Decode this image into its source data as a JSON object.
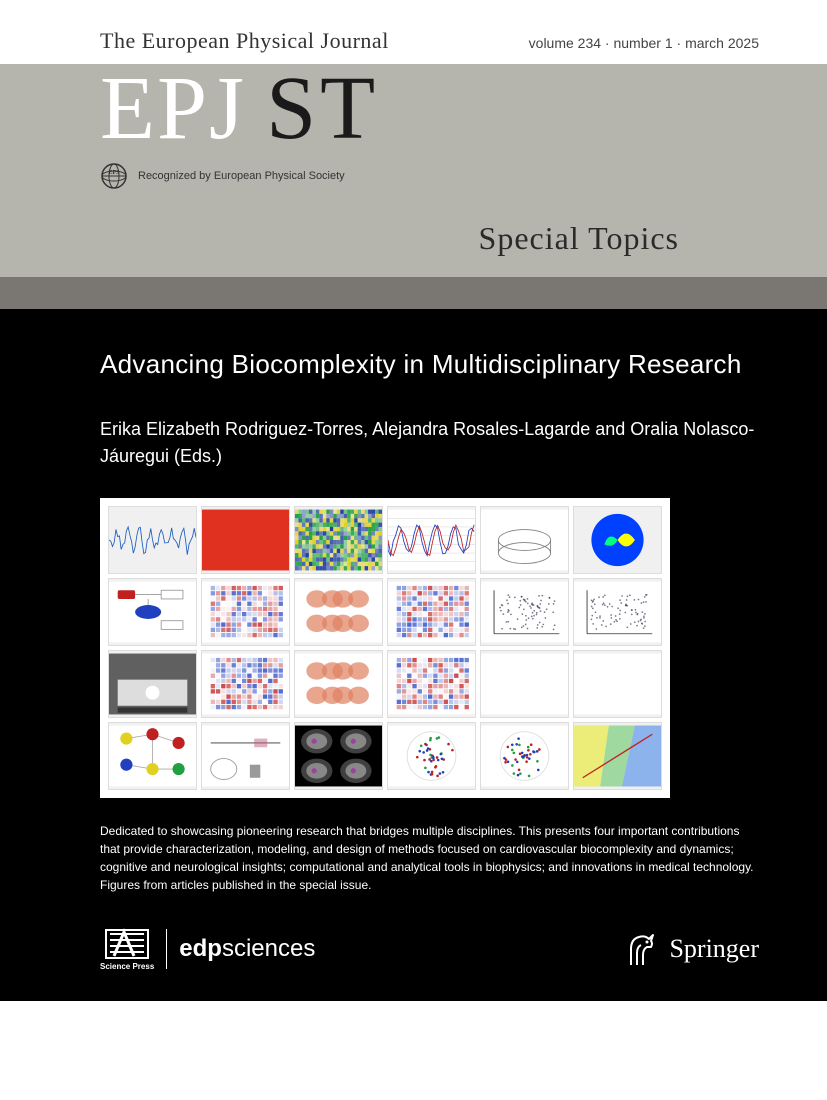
{
  "header": {
    "journal_name": "The European Physical Journal",
    "issue_info": "volume 234 · number 1 · march 2025"
  },
  "masthead": {
    "logo_primary": "EPJ",
    "logo_secondary": "ST",
    "recognized_text": "Recognized by European Physical Society",
    "subtitle": "Special Topics"
  },
  "article": {
    "title": "Advancing Biocomplexity in Multidisciplinary Research",
    "editors": "Erika Elizabeth Rodriguez-Torres, Alejandra Rosales-Lagarde and Oralia Nolasco-Jáuregui (Eds.)",
    "description": "Dedicated to showcasing pioneering research that bridges multiple disciplines. This presents four important contributions that provide characterization, modeling, and design of methods focused on cardiovascular biocomplexity and dynamics; cognitive and neurological insights; computational and analytical tools in biophysics; and innovations in medical technology.\nFigures from articles published in the special issue."
  },
  "publishers": {
    "science_press": "Science Press",
    "edp_bold": "edp",
    "edp_light": "sciences",
    "springer": "Springer"
  },
  "colors": {
    "grey_band": "#b5b5ad",
    "dark_grey": "#7a7772",
    "black": "#000000",
    "white": "#ffffff",
    "epj_white": "#ffffff",
    "st_dark": "#1a1a1a"
  },
  "collage": {
    "thumbs": [
      {
        "type": "waveform",
        "color": "#2060c0"
      },
      {
        "type": "solid",
        "color": "#e03020"
      },
      {
        "type": "spectrogram",
        "colors": [
          "#2040a0",
          "#e0d020",
          "#20a040"
        ]
      },
      {
        "type": "timeseries",
        "colors": [
          "#c02020",
          "#2040c0"
        ]
      },
      {
        "type": "cylinder",
        "color": "#808080"
      },
      {
        "type": "colormap",
        "colors": [
          "#0040ff",
          "#00ff80",
          "#ffff00",
          "#ff4000"
        ]
      },
      {
        "type": "flowchart",
        "colors": [
          "#c02020",
          "#2040c0"
        ]
      },
      {
        "type": "matrix",
        "colors": [
          "#c02020",
          "#2040c0"
        ]
      },
      {
        "type": "brains",
        "color": "#e08060"
      },
      {
        "type": "matrix",
        "colors": [
          "#c02020",
          "#2040c0"
        ]
      },
      {
        "type": "scatter",
        "color": "#202040"
      },
      {
        "type": "scatter",
        "color": "#202040"
      },
      {
        "type": "screenshot",
        "color": "#606060"
      },
      {
        "type": "matrix",
        "colors": [
          "#c02020",
          "#2040c0"
        ]
      },
      {
        "type": "brains",
        "color": "#e08060"
      },
      {
        "type": "matrix",
        "colors": [
          "#c02020",
          "#2040c0"
        ]
      },
      {
        "type": "empty",
        "color": "#ffffff"
      },
      {
        "type": "empty",
        "color": "#ffffff"
      },
      {
        "type": "network",
        "colors": [
          "#e0d020",
          "#c02020",
          "#2040c0",
          "#20a040"
        ]
      },
      {
        "type": "timeline",
        "color": "#c06080"
      },
      {
        "type": "ct-scans",
        "color": "#404040"
      },
      {
        "type": "dots",
        "colors": [
          "#c02020",
          "#20a040",
          "#2040c0"
        ]
      },
      {
        "type": "dots",
        "colors": [
          "#c02020",
          "#20a040",
          "#2040c0"
        ]
      },
      {
        "type": "regions",
        "colors": [
          "#e0e020",
          "#60c060",
          "#4080e0"
        ]
      }
    ]
  }
}
